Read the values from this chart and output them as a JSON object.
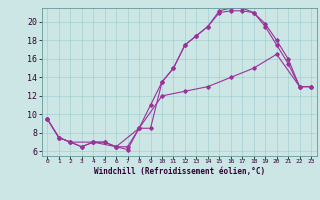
{
  "xlabel": "Windchill (Refroidissement éolien,°C)",
  "bg_color": "#cce5e5",
  "line_color": "#993399",
  "xlim": [
    -0.5,
    23.5
  ],
  "ylim": [
    5.5,
    21.5
  ],
  "yticks": [
    6,
    8,
    10,
    12,
    14,
    16,
    18,
    20
  ],
  "xticks": [
    0,
    1,
    2,
    3,
    4,
    5,
    6,
    7,
    8,
    9,
    10,
    11,
    12,
    13,
    14,
    15,
    16,
    17,
    18,
    19,
    20,
    21,
    22,
    23
  ],
  "series1": [
    [
      0,
      9.5
    ],
    [
      1,
      7.5
    ],
    [
      2,
      7.0
    ],
    [
      3,
      6.5
    ],
    [
      4,
      7.0
    ],
    [
      5,
      7.0
    ],
    [
      6,
      6.5
    ],
    [
      7,
      6.5
    ],
    [
      8,
      8.5
    ],
    [
      9,
      11.0
    ],
    [
      10,
      13.5
    ],
    [
      11,
      15.0
    ],
    [
      12,
      17.5
    ],
    [
      13,
      18.5
    ],
    [
      14,
      19.5
    ],
    [
      15,
      21.0
    ],
    [
      16,
      21.2
    ],
    [
      17,
      21.2
    ],
    [
      18,
      21.0
    ],
    [
      19,
      19.8
    ],
    [
      20,
      18.0
    ],
    [
      21,
      16.0
    ],
    [
      22,
      13.0
    ],
    [
      23,
      13.0
    ]
  ],
  "series2": [
    [
      0,
      9.5
    ],
    [
      1,
      7.5
    ],
    [
      2,
      7.0
    ],
    [
      3,
      6.5
    ],
    [
      4,
      7.0
    ],
    [
      5,
      7.0
    ],
    [
      6,
      6.5
    ],
    [
      7,
      6.2
    ],
    [
      8,
      8.5
    ],
    [
      9,
      8.5
    ],
    [
      10,
      13.5
    ],
    [
      11,
      15.0
    ],
    [
      12,
      17.5
    ],
    [
      13,
      18.5
    ],
    [
      14,
      19.5
    ],
    [
      15,
      21.2
    ],
    [
      16,
      21.5
    ],
    [
      17,
      21.5
    ],
    [
      18,
      21.0
    ],
    [
      19,
      19.5
    ],
    [
      20,
      17.5
    ],
    [
      21,
      15.5
    ],
    [
      22,
      13.0
    ],
    [
      23,
      13.0
    ]
  ],
  "series3": [
    [
      0,
      9.5
    ],
    [
      1,
      7.5
    ],
    [
      2,
      7.0
    ],
    [
      4,
      7.0
    ],
    [
      6,
      6.5
    ],
    [
      8,
      8.5
    ],
    [
      10,
      12.0
    ],
    [
      12,
      12.5
    ],
    [
      14,
      13.0
    ],
    [
      16,
      14.0
    ],
    [
      18,
      15.0
    ],
    [
      20,
      16.5
    ],
    [
      22,
      13.0
    ],
    [
      23,
      13.0
    ]
  ]
}
